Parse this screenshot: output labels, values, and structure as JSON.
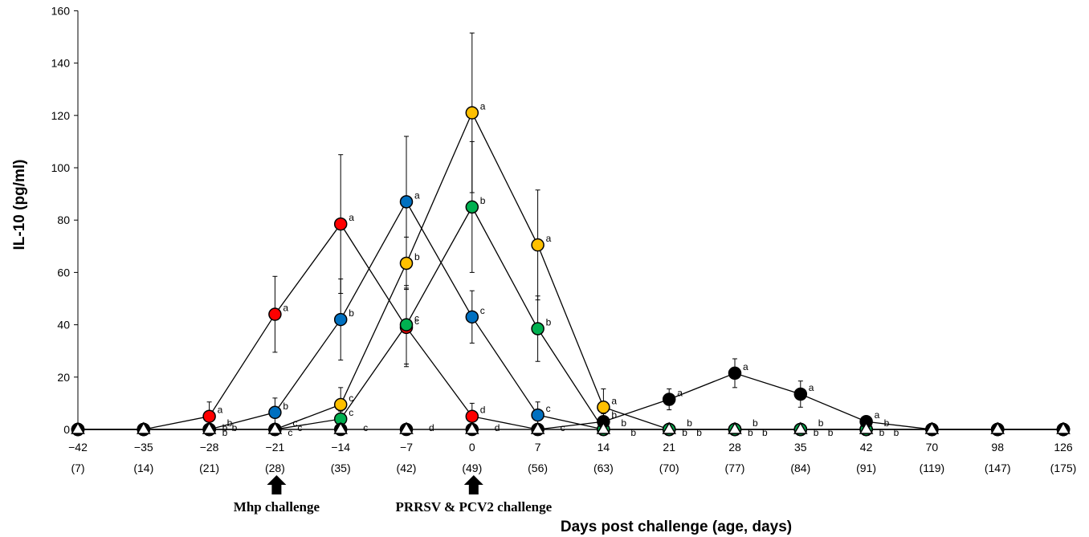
{
  "chart_data": {
    "type": "line",
    "ylabel": "IL-10 (pg/ml)",
    "xlabel": "Days post challenge (age, days)",
    "ylim": [
      0,
      160
    ],
    "yticks": [
      0,
      20,
      40,
      60,
      80,
      100,
      120,
      140,
      160
    ],
    "categories": [
      "-42",
      "-35",
      "-28",
      "-21",
      "-14",
      "-7",
      "0",
      "7",
      "14",
      "21",
      "28",
      "35",
      "42",
      "70",
      "98",
      "126"
    ],
    "age_labels": [
      "(7)",
      "(14)",
      "(21)",
      "(28)",
      "(35)",
      "(42)",
      "(49)",
      "(56)",
      "(63)",
      "(70)",
      "(77)",
      "(84)",
      "(91)",
      "(119)",
      "(147)",
      "(175)"
    ],
    "series": [
      {
        "color": "#ff0000",
        "marker": "circle",
        "values": [
          0,
          0,
          5,
          44,
          78.5,
          39,
          5,
          0,
          0,
          0,
          0,
          0,
          0,
          0,
          0,
          0
        ],
        "errors": [
          0,
          0,
          5.5,
          14.5,
          26.5,
          15,
          5,
          0,
          0,
          0,
          0,
          0,
          0,
          0,
          0,
          0
        ],
        "letters": [
          "",
          "",
          "a",
          "a",
          "a",
          "c",
          "d",
          "",
          "",
          "",
          "",
          "",
          "",
          "",
          "",
          ""
        ]
      },
      {
        "color": "#0070c0",
        "marker": "circle",
        "values": [
          0,
          0,
          0,
          6.5,
          42,
          87,
          43,
          5.5,
          0,
          0,
          0,
          0,
          0,
          0,
          0,
          0
        ],
        "errors": [
          0,
          0,
          0,
          5.5,
          15.5,
          25,
          10,
          5,
          0,
          0,
          0,
          0,
          0,
          0,
          0,
          0
        ],
        "letters": [
          "",
          "",
          "b",
          "b",
          "b",
          "a",
          "c",
          "c",
          "",
          "",
          "",
          "",
          "",
          "",
          "",
          ""
        ]
      },
      {
        "color": "#ffc000",
        "marker": "circle",
        "values": [
          0,
          0,
          0,
          0,
          9.5,
          63.5,
          121,
          70.5,
          8.5,
          0,
          0,
          0,
          0,
          0,
          0,
          0
        ],
        "errors": [
          0,
          0,
          0,
          0,
          6.5,
          10,
          30.5,
          21,
          7,
          0,
          0,
          0,
          0,
          0,
          0,
          0
        ],
        "letters": [
          "",
          "",
          "b",
          "c",
          "c",
          "b",
          "a",
          "a",
          "a",
          "b",
          "b",
          "b",
          "b",
          "",
          "",
          ""
        ]
      },
      {
        "color": "#00b050",
        "marker": "circle",
        "values": [
          0,
          0,
          0,
          0,
          4,
          40,
          85,
          38.5,
          0,
          0,
          0,
          0,
          0,
          0,
          0,
          0
        ],
        "errors": [
          0,
          0,
          0,
          0,
          3,
          15,
          25,
          12.5,
          0,
          0,
          0,
          0,
          0,
          0,
          0,
          0
        ],
        "letters": [
          "",
          "",
          "b",
          "c",
          "c",
          "c",
          "b",
          "b",
          "b",
          "b",
          "b",
          "b",
          "b",
          "",
          "",
          ""
        ]
      },
      {
        "color": "#000000",
        "marker": "circle",
        "values": [
          0,
          0,
          0,
          0,
          0,
          0,
          0,
          0,
          3,
          11.5,
          21.5,
          13.5,
          3,
          0,
          0,
          0
        ],
        "errors": [
          0,
          0,
          0,
          0,
          0,
          0,
          0,
          0,
          3,
          4,
          5.5,
          5,
          2,
          0,
          0,
          0
        ],
        "letters": [
          "",
          "",
          "b",
          "c",
          "c",
          "d",
          "d",
          "c",
          "b",
          "a",
          "a",
          "a",
          "a",
          "",
          "",
          ""
        ]
      },
      {
        "color": "#ffffff",
        "marker": "triangle",
        "values": [
          0,
          0,
          0,
          0,
          0,
          0,
          0,
          0,
          0,
          0,
          0,
          0,
          0,
          0,
          0,
          0
        ],
        "errors": [
          0,
          0,
          0,
          0,
          0,
          0,
          0,
          0,
          0,
          0,
          0,
          0,
          0,
          0,
          0,
          0
        ],
        "letters": [
          "",
          "",
          "",
          "",
          "",
          "",
          "",
          "",
          "b",
          "b",
          "b",
          "b",
          "b",
          "",
          "",
          ""
        ]
      }
    ],
    "annotations": [
      {
        "label": "Mhp challenge",
        "at_category": "-21"
      },
      {
        "label": "PRRSV & PCV2 challenge",
        "at_category": "0"
      }
    ]
  }
}
